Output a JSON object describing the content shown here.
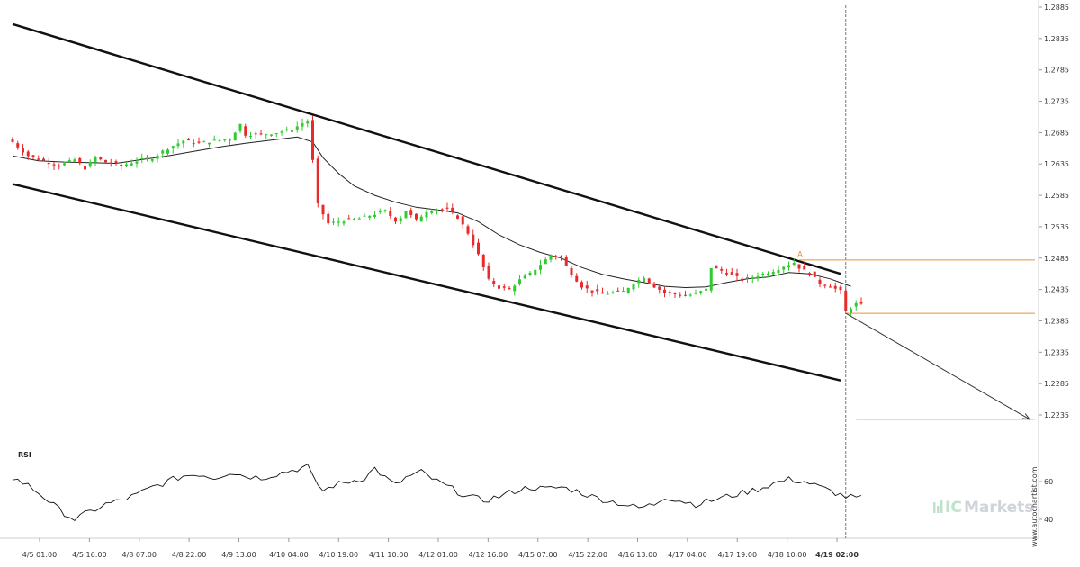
{
  "chart_data": {
    "type": "candlestick",
    "price_axis": {
      "ticks": [
        "1.2885",
        "1.2835",
        "1.2785",
        "1.2735",
        "1.2685",
        "1.2635",
        "1.2585",
        "1.2535",
        "1.2485",
        "1.2435",
        "1.2385",
        "1.2335",
        "1.2285",
        "1.2235"
      ],
      "ylim": [
        1.218,
        1.289
      ]
    },
    "date_axis": {
      "ticks": [
        "4/5 01:00",
        "4/5 16:00",
        "4/8 07:00",
        "4/8 22:00",
        "4/9 13:00",
        "4/10 04:00",
        "4/10 19:00",
        "4/11 10:00",
        "4/12 01:00",
        "4/12 16:00",
        "4/15 07:00",
        "4/15 22:00",
        "4/16 13:00",
        "4/17 04:00",
        "4/17 19:00",
        "4/18 10:00",
        "4/19 02:00"
      ],
      "last_tick_bold": true
    },
    "close_path": [
      [
        0,
        1.267
      ],
      [
        3,
        1.2648
      ],
      [
        6,
        1.264
      ],
      [
        9,
        1.2632
      ],
      [
        12,
        1.2642
      ],
      [
        14,
        1.2628
      ],
      [
        16,
        1.2645
      ],
      [
        18,
        1.2638
      ],
      [
        21,
        1.2632
      ],
      [
        24,
        1.264
      ],
      [
        27,
        1.2645
      ],
      [
        30,
        1.266
      ],
      [
        33,
        1.2672
      ],
      [
        36,
        1.2668
      ],
      [
        39,
        1.2672
      ],
      [
        42,
        1.2675
      ],
      [
        44,
        1.2698
      ],
      [
        45,
        1.2682
      ],
      [
        48,
        1.2682
      ],
      [
        51,
        1.2685
      ],
      [
        54,
        1.269
      ],
      [
        56,
        1.27
      ],
      [
        57,
        1.2703
      ],
      [
        58,
        1.264
      ],
      [
        59,
        1.257
      ],
      [
        61,
        1.254
      ],
      [
        64,
        1.2545
      ],
      [
        67,
        1.2548
      ],
      [
        70,
        1.2555
      ],
      [
        72,
        1.256
      ],
      [
        74,
        1.2545
      ],
      [
        75,
        1.255
      ],
      [
        76,
        1.256
      ],
      [
        78,
        1.2545
      ],
      [
        80,
        1.256
      ],
      [
        82,
        1.2563
      ],
      [
        84,
        1.2562
      ],
      [
        86,
        1.255
      ],
      [
        88,
        1.2525
      ],
      [
        90,
        1.249
      ],
      [
        92,
        1.245
      ],
      [
        94,
        1.2438
      ],
      [
        96,
        1.2435
      ],
      [
        98,
        1.245
      ],
      [
        100,
        1.246
      ],
      [
        102,
        1.2475
      ],
      [
        104,
        1.249
      ],
      [
        106,
        1.2485
      ],
      [
        108,
        1.246
      ],
      [
        110,
        1.244
      ],
      [
        112,
        1.2432
      ],
      [
        114,
        1.2428
      ],
      [
        116,
        1.243
      ],
      [
        118,
        1.2432
      ],
      [
        120,
        1.2445
      ],
      [
        122,
        1.2455
      ],
      [
        124,
        1.244
      ],
      [
        126,
        1.243
      ],
      [
        128,
        1.2428
      ],
      [
        130,
        1.2425
      ],
      [
        132,
        1.2428
      ],
      [
        134,
        1.2435
      ],
      [
        135,
        1.247
      ],
      [
        137,
        1.2465
      ],
      [
        139,
        1.2458
      ],
      [
        141,
        1.245
      ],
      [
        143,
        1.2455
      ],
      [
        145,
        1.246
      ],
      [
        147,
        1.2465
      ],
      [
        149,
        1.2472
      ],
      [
        151,
        1.2478
      ],
      [
        152,
        1.247
      ],
      [
        154,
        1.246
      ],
      [
        156,
        1.2445
      ],
      [
        158,
        1.244
      ],
      [
        160,
        1.2432
      ],
      [
        161,
        1.24
      ],
      [
        163,
        1.2412
      ],
      [
        164,
        1.241
      ]
    ],
    "moving_average": [
      [
        0,
        1.2648
      ],
      [
        5,
        1.264
      ],
      [
        10,
        1.2638
      ],
      [
        15,
        1.2637
      ],
      [
        20,
        1.2636
      ],
      [
        25,
        1.2642
      ],
      [
        30,
        1.2648
      ],
      [
        35,
        1.2655
      ],
      [
        40,
        1.2662
      ],
      [
        45,
        1.2668
      ],
      [
        50,
        1.2673
      ],
      [
        55,
        1.2678
      ],
      [
        58,
        1.267
      ],
      [
        60,
        1.2645
      ],
      [
        63,
        1.262
      ],
      [
        66,
        1.26
      ],
      [
        70,
        1.2585
      ],
      [
        74,
        1.2574
      ],
      [
        78,
        1.2566
      ],
      [
        82,
        1.2562
      ],
      [
        86,
        1.2557
      ],
      [
        90,
        1.2543
      ],
      [
        94,
        1.2522
      ],
      [
        98,
        1.2506
      ],
      [
        102,
        1.2494
      ],
      [
        106,
        1.2485
      ],
      [
        110,
        1.247
      ],
      [
        114,
        1.2459
      ],
      [
        118,
        1.2452
      ],
      [
        122,
        1.2446
      ],
      [
        126,
        1.244
      ],
      [
        130,
        1.2438
      ],
      [
        134,
        1.2439
      ],
      [
        138,
        1.2446
      ],
      [
        142,
        1.2452
      ],
      [
        146,
        1.2455
      ],
      [
        150,
        1.2462
      ],
      [
        154,
        1.246
      ],
      [
        158,
        1.2452
      ],
      [
        162,
        1.244
      ]
    ],
    "channel": {
      "upper": [
        [
          0,
          1.2858
        ],
        [
          160,
          1.246
        ]
      ],
      "lower": [
        [
          0,
          1.2603
        ],
        [
          160,
          1.229
        ]
      ]
    },
    "levels": [
      {
        "price": 1.2482,
        "from": 152,
        "to": 199,
        "color": "#e8913a"
      },
      {
        "price": 1.2397,
        "from": 161,
        "to": 199,
        "color": "#e8913a"
      },
      {
        "price": 1.2228,
        "from": 163,
        "to": 199,
        "color": "#e8913a"
      }
    ],
    "forecast_arrow": {
      "from": [
        161,
        1.2397
      ],
      "to": [
        197,
        1.2228
      ]
    },
    "current_time_index": 161,
    "up_color": "#2ecc2e",
    "down_color": "#e82a2a",
    "rsi": {
      "label": "RSI",
      "ticks": [
        "60",
        "40"
      ],
      "ylim": [
        25,
        80
      ],
      "values": [
        [
          0,
          62
        ],
        [
          3,
          58
        ],
        [
          6,
          52
        ],
        [
          9,
          45
        ],
        [
          12,
          40
        ],
        [
          15,
          44
        ],
        [
          18,
          48
        ],
        [
          21,
          50
        ],
        [
          24,
          53
        ],
        [
          27,
          57
        ],
        [
          30,
          60
        ],
        [
          33,
          63
        ],
        [
          36,
          64
        ],
        [
          39,
          62
        ],
        [
          42,
          65
        ],
        [
          45,
          63
        ],
        [
          48,
          62
        ],
        [
          51,
          64
        ],
        [
          54,
          66
        ],
        [
          57,
          68
        ],
        [
          58,
          62
        ],
        [
          60,
          55
        ],
        [
          62,
          58
        ],
        [
          65,
          60
        ],
        [
          68,
          62
        ],
        [
          70,
          67
        ],
        [
          72,
          62
        ],
        [
          74,
          58
        ],
        [
          76,
          62
        ],
        [
          79,
          65
        ],
        [
          82,
          60
        ],
        [
          85,
          56
        ],
        [
          88,
          52
        ],
        [
          91,
          50
        ],
        [
          94,
          52
        ],
        [
          97,
          55
        ],
        [
          100,
          57
        ],
        [
          103,
          56
        ],
        [
          106,
          57
        ],
        [
          109,
          55
        ],
        [
          112,
          52
        ],
        [
          115,
          50
        ],
        [
          118,
          48
        ],
        [
          121,
          46
        ],
        [
          124,
          48
        ],
        [
          126,
          52
        ],
        [
          129,
          50
        ],
        [
          132,
          48
        ],
        [
          135,
          50
        ],
        [
          138,
          52
        ],
        [
          141,
          54
        ],
        [
          144,
          56
        ],
        [
          147,
          59
        ],
        [
          150,
          61
        ],
        [
          153,
          60
        ],
        [
          156,
          57
        ],
        [
          158,
          55
        ],
        [
          161,
          52
        ],
        [
          164,
          51
        ]
      ]
    },
    "total_bars": 200
  },
  "footer": {
    "brand_prefix": "IC",
    "brand_suffix": "Markets",
    "website": "www.autochartist.com"
  },
  "icons": {
    "brand_mark": "icmarkets-logo-icon"
  },
  "annotations": {
    "breakout_marker": "A"
  }
}
